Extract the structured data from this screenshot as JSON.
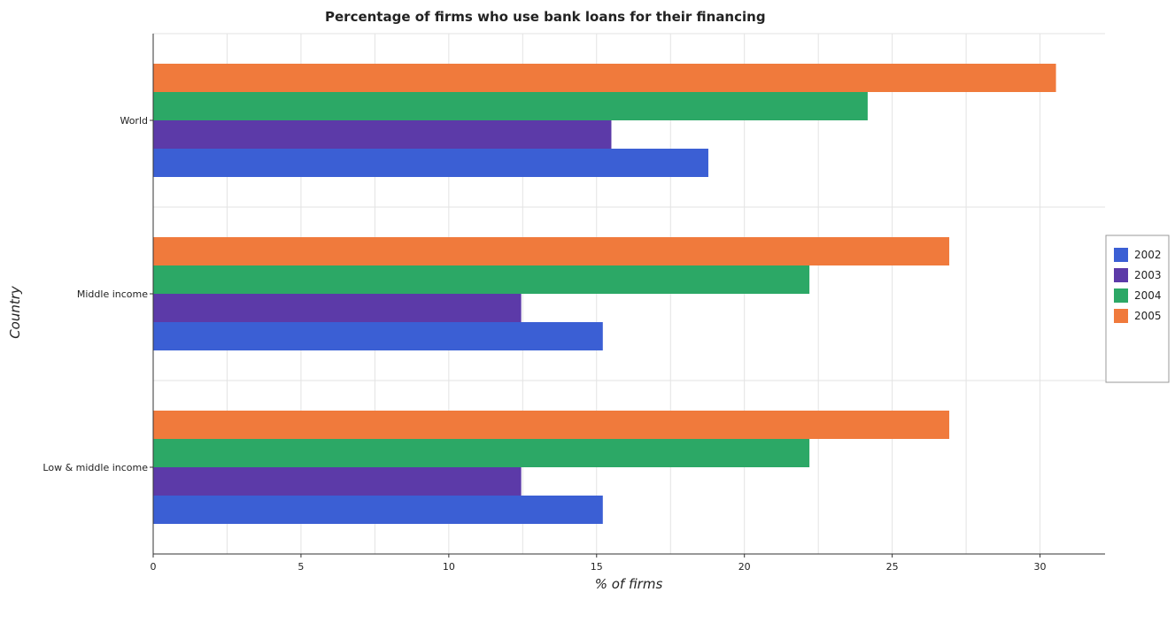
{
  "chart_data": {
    "type": "bar",
    "orientation": "horizontal",
    "title": "Percentage of firms who use bank loans for their financing",
    "xlabel": "% of firms",
    "ylabel": "Country",
    "xlim": [
      0,
      32.2
    ],
    "xticks": [
      0,
      5,
      10,
      15,
      20,
      25,
      30
    ],
    "grid": true,
    "legend_position": "right",
    "categories": [
      "Low & middle income",
      "Middle income",
      "World"
    ],
    "series": [
      {
        "name": "2002",
        "color": "#3b5fd4",
        "values": [
          15.21,
          15.21,
          18.78
        ]
      },
      {
        "name": "2003",
        "color": "#5c3aa8",
        "values": [
          12.45,
          12.45,
          15.5
        ]
      },
      {
        "name": "2004",
        "color": "#2ca866",
        "values": [
          22.2,
          22.2,
          24.17
        ]
      },
      {
        "name": "2005",
        "color": "#f07a3c",
        "values": [
          26.93,
          26.93,
          30.54
        ]
      }
    ]
  }
}
